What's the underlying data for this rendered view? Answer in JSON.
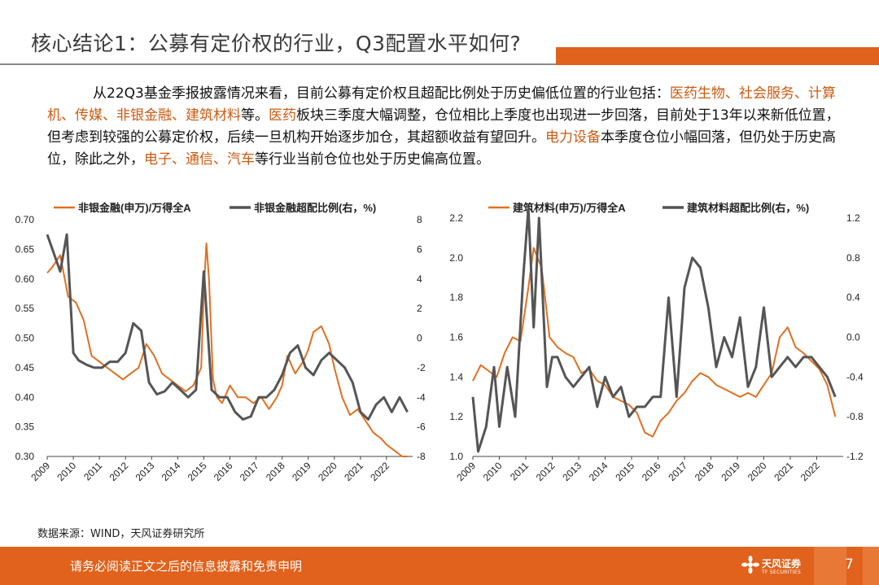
{
  "slide": {
    "title": "核心结论1：公募有定价权的行业，Q3配置水平如何?",
    "paragraph": [
      {
        "text": "从22Q3基金季报披露情况来看，目前公募有定价权且超配比例处于历史偏低位置的行业包括：",
        "hl": false
      },
      {
        "text": "医药生物、社会服务、计算机、传媒、非银金融、建筑材料",
        "hl": true
      },
      {
        "text": "等。",
        "hl": false
      },
      {
        "text": "医药",
        "hl": true
      },
      {
        "text": "板块三季度大幅调整，仓位相比上季度也出现进一步回落，目前处于13年以来新低位置，但考虑到较强的公募定价权，后续一旦机构开始逐步加仓，其超额收益有望回升。",
        "hl": false
      },
      {
        "text": "电力设备",
        "hl": true
      },
      {
        "text": "本季度仓位小幅回落，但仍处于历史高位，除此之外，",
        "hl": false
      },
      {
        "text": "电子、通信、汽车",
        "hl": true
      },
      {
        "text": "等行业当前仓位也处于历史偏高位置。",
        "hl": false
      }
    ],
    "source": "数据来源：WIND，天风证券研究所",
    "footer_text": "请务必阅读正文之后的信息披露和免责申明",
    "logo_cn": "天风证券",
    "logo_en": "TF SECURITIES",
    "page_number": "7",
    "colors": {
      "accent": "#e0621c",
      "highlight": "#cc5a10",
      "series_orange": "#e07020",
      "series_gray": "#555555"
    }
  },
  "chart_data": [
    {
      "type": "line",
      "x_ticks": [
        "2009",
        "2010",
        "2011",
        "2012",
        "2013",
        "2014",
        "2015",
        "2016",
        "2017",
        "2018",
        "2019",
        "2020",
        "2021",
        "2022"
      ],
      "x_range": [
        2009,
        2023
      ],
      "y_left": {
        "lim": [
          0.3,
          0.7
        ],
        "ticks": [
          "0.70",
          "0.65",
          "0.60",
          "0.55",
          "0.50",
          "0.45",
          "0.40",
          "0.35",
          "0.30"
        ]
      },
      "y_right": {
        "lim": [
          -8,
          8
        ],
        "ticks": [
          "8",
          "6",
          "4",
          "2",
          "0",
          "-2",
          "-4",
          "-6",
          "-8"
        ]
      },
      "series": [
        {
          "name": "非银金融(申万)/万得全A",
          "axis": "left",
          "color": "#e07020",
          "x": [
            2009.0,
            2009.2,
            2009.5,
            2009.8,
            2010.1,
            2010.4,
            2010.7,
            2011.0,
            2011.3,
            2011.6,
            2011.9,
            2012.2,
            2012.5,
            2012.8,
            2013.1,
            2013.4,
            2013.7,
            2014.0,
            2014.3,
            2014.6,
            2014.9,
            2015.0,
            2015.1,
            2015.2,
            2015.35,
            2015.5,
            2015.7,
            2016.0,
            2016.3,
            2016.6,
            2016.9,
            2017.2,
            2017.5,
            2017.8,
            2018.0,
            2018.2,
            2018.5,
            2018.8,
            2019.0,
            2019.2,
            2019.5,
            2019.8,
            2020.0,
            2020.3,
            2020.6,
            2020.9,
            2021.2,
            2021.5,
            2021.8,
            2022.0,
            2022.3,
            2022.6,
            2022.8
          ],
          "y": [
            0.61,
            0.62,
            0.64,
            0.57,
            0.56,
            0.53,
            0.47,
            0.46,
            0.45,
            0.44,
            0.43,
            0.44,
            0.45,
            0.49,
            0.47,
            0.44,
            0.43,
            0.42,
            0.41,
            0.42,
            0.45,
            0.58,
            0.66,
            0.6,
            0.43,
            0.4,
            0.39,
            0.42,
            0.4,
            0.4,
            0.39,
            0.4,
            0.38,
            0.4,
            0.42,
            0.47,
            0.44,
            0.46,
            0.48,
            0.51,
            0.52,
            0.49,
            0.45,
            0.4,
            0.37,
            0.38,
            0.36,
            0.34,
            0.33,
            0.32,
            0.31,
            0.3,
            0.3
          ]
        },
        {
          "name": "非银金融超配比例(右，%)",
          "axis": "right",
          "color": "#555555",
          "x": [
            2009.0,
            2009.2,
            2009.5,
            2009.75,
            2010.0,
            2010.2,
            2010.5,
            2010.8,
            2011.1,
            2011.4,
            2011.7,
            2012.0,
            2012.3,
            2012.6,
            2012.9,
            2013.2,
            2013.5,
            2013.8,
            2014.1,
            2014.4,
            2014.7,
            2015.0,
            2015.3,
            2015.6,
            2015.9,
            2016.2,
            2016.5,
            2016.8,
            2017.1,
            2017.4,
            2017.7,
            2018.0,
            2018.3,
            2018.6,
            2018.9,
            2019.2,
            2019.5,
            2019.8,
            2020.1,
            2020.4,
            2020.7,
            2021.0,
            2021.3,
            2021.6,
            2021.9,
            2022.2,
            2022.5,
            2022.8
          ],
          "y": [
            7.0,
            6.0,
            4.5,
            7.0,
            -1.0,
            -1.5,
            -1.8,
            -2.0,
            -2.0,
            -1.6,
            -1.6,
            -1.0,
            1.0,
            0.5,
            -3.0,
            -3.8,
            -3.6,
            -3.0,
            -3.5,
            -4.0,
            -3.5,
            4.5,
            -3.5,
            -4.0,
            -4.0,
            -5.0,
            -5.5,
            -5.3,
            -4.0,
            -4.0,
            -3.5,
            -2.5,
            -1.0,
            -0.5,
            -2.0,
            -2.5,
            -1.5,
            -1.0,
            -1.5,
            -2.0,
            -3.0,
            -5.0,
            -5.5,
            -4.5,
            -4.0,
            -5.0,
            -4.0,
            -5.0
          ]
        }
      ]
    },
    {
      "type": "line",
      "x_ticks": [
        "2009",
        "2010",
        "2011",
        "2012",
        "2013",
        "2014",
        "2015",
        "2016",
        "2017",
        "2018",
        "2019",
        "2020",
        "2021",
        "2022"
      ],
      "x_range": [
        2009,
        2023
      ],
      "y_left": {
        "lim": [
          1.0,
          2.2
        ],
        "ticks": [
          "2.2",
          "2.0",
          "1.8",
          "1.6",
          "1.4",
          "1.2",
          "1.0"
        ]
      },
      "y_right": {
        "lim": [
          -1.2,
          1.2
        ],
        "ticks": [
          "1.2",
          "0.8",
          "0.4",
          "0.0",
          "-0.4",
          "-0.8",
          "-1.2"
        ]
      },
      "series": [
        {
          "name": "建筑材料(申万)/万得全A",
          "axis": "left",
          "color": "#e07020",
          "x": [
            2009.0,
            2009.3,
            2009.6,
            2009.9,
            2010.2,
            2010.5,
            2010.8,
            2011.1,
            2011.3,
            2011.6,
            2011.9,
            2012.2,
            2012.5,
            2012.8,
            2013.1,
            2013.4,
            2013.7,
            2014.0,
            2014.3,
            2014.6,
            2014.9,
            2015.2,
            2015.5,
            2015.8,
            2016.1,
            2016.4,
            2016.7,
            2017.0,
            2017.3,
            2017.6,
            2017.9,
            2018.2,
            2018.5,
            2018.8,
            2019.1,
            2019.4,
            2019.7,
            2020.0,
            2020.3,
            2020.6,
            2020.9,
            2021.2,
            2021.5,
            2021.8,
            2022.1,
            2022.4,
            2022.7
          ],
          "y": [
            1.38,
            1.46,
            1.43,
            1.4,
            1.52,
            1.6,
            1.58,
            1.85,
            2.05,
            1.95,
            1.6,
            1.55,
            1.52,
            1.5,
            1.42,
            1.44,
            1.38,
            1.36,
            1.3,
            1.28,
            1.26,
            1.22,
            1.12,
            1.1,
            1.18,
            1.22,
            1.28,
            1.32,
            1.38,
            1.42,
            1.4,
            1.36,
            1.34,
            1.32,
            1.3,
            1.32,
            1.3,
            1.36,
            1.42,
            1.6,
            1.65,
            1.55,
            1.52,
            1.48,
            1.44,
            1.36,
            1.2
          ]
        },
        {
          "name": "建筑材料超配比例(右，%)",
          "axis": "right",
          "color": "#555555",
          "x": [
            2009.0,
            2009.2,
            2009.5,
            2009.8,
            2010.0,
            2010.3,
            2010.6,
            2010.9,
            2011.1,
            2011.3,
            2011.5,
            2011.8,
            2012.0,
            2012.2,
            2012.5,
            2012.8,
            2013.1,
            2013.4,
            2013.7,
            2014.0,
            2014.3,
            2014.6,
            2014.9,
            2015.2,
            2015.5,
            2015.8,
            2016.1,
            2016.4,
            2016.7,
            2017.0,
            2017.3,
            2017.6,
            2017.9,
            2018.2,
            2018.5,
            2018.8,
            2019.1,
            2019.4,
            2019.7,
            2020.0,
            2020.3,
            2020.6,
            2020.9,
            2021.2,
            2021.5,
            2021.8,
            2022.1,
            2022.4,
            2022.7
          ],
          "y": [
            -0.6,
            -1.15,
            -0.9,
            -0.3,
            -0.9,
            -0.3,
            -0.8,
            0.6,
            1.3,
            0.1,
            1.2,
            -0.5,
            -0.2,
            -0.2,
            -0.4,
            -0.5,
            -0.4,
            -0.3,
            -0.7,
            -0.4,
            -0.6,
            -0.5,
            -0.8,
            -0.7,
            -0.7,
            -0.6,
            -0.6,
            0.4,
            -0.6,
            0.5,
            0.8,
            0.7,
            0.3,
            -0.3,
            0.0,
            -0.2,
            0.2,
            -0.5,
            -0.3,
            0.3,
            -0.4,
            -0.3,
            -0.2,
            -0.3,
            -0.2,
            -0.2,
            -0.3,
            -0.4,
            -0.6
          ]
        }
      ]
    }
  ]
}
